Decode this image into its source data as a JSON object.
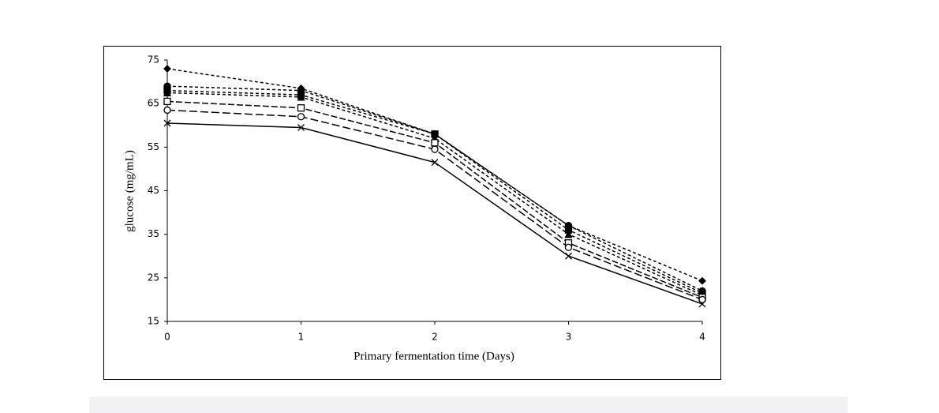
{
  "chart_data": {
    "type": "line",
    "x_label": "Primary fermentation time (Days)",
    "y_label": "glucose (mg/mL)",
    "x": [
      0,
      1,
      2,
      3,
      4
    ],
    "xlim": [
      0,
      4
    ],
    "xticks": [
      0,
      1,
      2,
      3,
      4
    ],
    "ylim": [
      15,
      75
    ],
    "yticks": [
      15,
      25,
      35,
      45,
      55,
      65,
      75
    ],
    "series": [
      {
        "color": "#000000",
        "dash": "4,3",
        "marker": "diamond",
        "values": [
          73,
          68.5,
          58,
          37,
          24.3
        ]
      },
      {
        "color": "#000000",
        "dash": "4,3",
        "marker": "circle",
        "values": [
          69,
          68,
          58,
          37,
          22
        ]
      },
      {
        "color": "#000000",
        "dash": "4,3",
        "marker": "square",
        "values": [
          68,
          67,
          58,
          36,
          21.5
        ]
      },
      {
        "color": "#000000",
        "dash": "4,3",
        "marker": "triangle",
        "values": [
          67.5,
          66.5,
          57,
          35,
          21
        ]
      },
      {
        "color": "#000000",
        "dash": "8,3",
        "marker": "open-square",
        "values": [
          65.5,
          64,
          56,
          33,
          20.5
        ]
      },
      {
        "color": "#000000",
        "dash": "10,4",
        "marker": "open-circle",
        "values": [
          63.5,
          62,
          54.5,
          32,
          20
        ]
      },
      {
        "color": "#000000",
        "dash": "none",
        "marker": "x",
        "values": [
          60.5,
          59.5,
          51.5,
          30,
          19
        ]
      }
    ]
  }
}
